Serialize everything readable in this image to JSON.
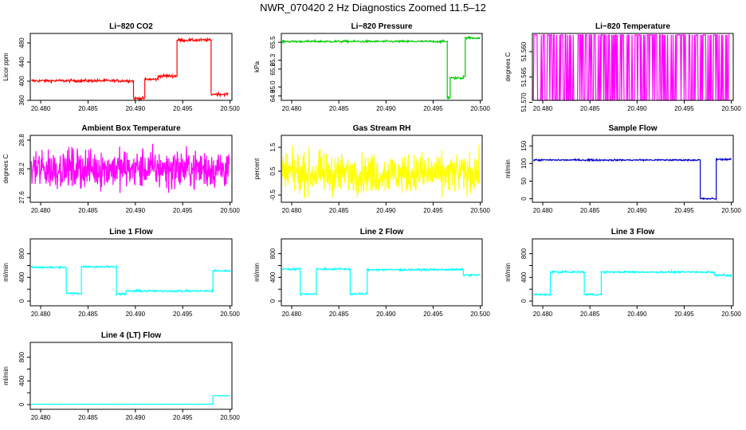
{
  "page": {
    "title": "NWR_070420  2 Hz Diagnostics Zoomed 11.5–12"
  },
  "chart_data": [
    {
      "type": "line",
      "title": "Li−820 CO2",
      "xlabel": "",
      "ylabel": "Licor ppm",
      "color": "#ff0000",
      "xlim": [
        20.4789,
        20.5002
      ],
      "ylim": [
        360,
        500
      ],
      "xticks": [
        20.48,
        20.485,
        20.49,
        20.495,
        20.5
      ],
      "xtick_labels": [
        "20.480",
        "20.485",
        "20.490",
        "20.495",
        "20.500"
      ],
      "yticks": [
        360,
        400,
        440,
        480
      ],
      "ytick_labels": [
        "360",
        "400",
        "440",
        "480"
      ],
      "noise": 1.5,
      "segments": [
        [
          20.479,
          20.4898,
          401
        ],
        [
          20.4898,
          20.491,
          364
        ],
        [
          20.491,
          20.4924,
          404
        ],
        [
          20.4924,
          20.4944,
          411
        ],
        [
          20.4944,
          20.498,
          486
        ],
        [
          20.498,
          20.4998,
          373
        ]
      ]
    },
    {
      "type": "line",
      "title": "Li−820 Pressure",
      "xlabel": "",
      "ylabel": "kPa",
      "color": "#00cc00",
      "xlim": [
        20.4789,
        20.5002
      ],
      "ylim": [
        64.85,
        65.6
      ],
      "xticks": [
        20.48,
        20.485,
        20.49,
        20.495,
        20.5
      ],
      "xtick_labels": [
        "20.480",
        "20.485",
        "20.490",
        "20.495",
        "20.500"
      ],
      "yticks": [
        64.9,
        65.0,
        65.2,
        65.3,
        65.5
      ],
      "ytick_labels": [
        "64.9",
        "65.0",
        "65.2",
        "65.3",
        "65.5"
      ],
      "noise": 0.006,
      "segments": [
        [
          20.479,
          20.4965,
          65.51
        ],
        [
          20.4965,
          20.4968,
          64.88
        ],
        [
          20.4968,
          20.4982,
          65.1
        ],
        [
          20.4982,
          20.4984,
          65.12
        ],
        [
          20.4984,
          20.5,
          65.55
        ]
      ]
    },
    {
      "type": "line",
      "title": "Li−820 Temperature",
      "xlabel": "",
      "ylabel": "degrees C",
      "color": "#ff00ff",
      "xlim": [
        20.4789,
        20.5002
      ],
      "ylim": [
        51.5696,
        51.5564
      ],
      "xticks": [
        20.48,
        20.485,
        20.49,
        20.495,
        20.5
      ],
      "xtick_labels": [
        "20.480",
        "20.485",
        "20.490",
        "20.495",
        "20.500"
      ],
      "yticks": [
        51.57,
        51.565,
        51.56
      ],
      "ytick_labels": [
        "51.570",
        "51.565",
        "51.560"
      ],
      "quantized_levels": [
        51.5696,
        51.5567
      ]
    },
    {
      "type": "line",
      "title": "Ambient Box Temperature",
      "xlabel": "",
      "ylabel": "degrees C",
      "color": "#ff00ff",
      "xlim": [
        20.4789,
        20.5002
      ],
      "ylim": [
        27.5,
        28.9
      ],
      "xticks": [
        20.48,
        20.485,
        20.49,
        20.495,
        20.5
      ],
      "xtick_labels": [
        "20.480",
        "20.485",
        "20.490",
        "20.495",
        "20.500"
      ],
      "yticks": [
        27.6,
        28.2,
        28.8
      ],
      "ytick_labels": [
        "27.6",
        "28.2",
        "28.8"
      ],
      "noise_band": [
        27.6,
        28.8
      ],
      "center": 28.2
    },
    {
      "type": "line",
      "title": "Gas Stream RH",
      "xlabel": "",
      "ylabel": "percent",
      "color": "#ffff00",
      "xlim": [
        20.4789,
        20.5002
      ],
      "ylim": [
        -0.8,
        2.0
      ],
      "xticks": [
        20.48,
        20.485,
        20.49,
        20.495,
        20.5
      ],
      "xtick_labels": [
        "20.480",
        "20.485",
        "20.490",
        "20.495",
        "20.500"
      ],
      "yticks": [
        -0.5,
        0.5,
        1.5
      ],
      "ytick_labels": [
        "-0.5",
        "0.5",
        "1.5"
      ],
      "noise_band": [
        -0.6,
        1.8
      ],
      "center": 0.4
    },
    {
      "type": "line",
      "title": "Sample Flow",
      "xlabel": "",
      "ylabel": "ml/min",
      "color": "#0000cc",
      "xlim": [
        20.4789,
        20.5002
      ],
      "ylim": [
        -10,
        180
      ],
      "xticks": [
        20.48,
        20.485,
        20.49,
        20.495,
        20.5
      ],
      "xtick_labels": [
        "20.480",
        "20.485",
        "20.490",
        "20.495",
        "20.500"
      ],
      "yticks": [
        0,
        50,
        100,
        150
      ],
      "ytick_labels": [
        "0",
        "50",
        "100",
        "150"
      ],
      "noise": 1.2,
      "segments": [
        [
          20.479,
          20.4967,
          110
        ],
        [
          20.4967,
          20.4984,
          0
        ],
        [
          20.4984,
          20.5,
          112
        ]
      ]
    },
    {
      "type": "line",
      "title": "Line 1 Flow",
      "xlabel": "",
      "ylabel": "ml/min",
      "color": "#00ffff",
      "xlim": [
        20.4789,
        20.5002
      ],
      "ylim": [
        -80,
        1050
      ],
      "xticks": [
        20.48,
        20.485,
        20.49,
        20.495,
        20.5
      ],
      "xtick_labels": [
        "20.480",
        "20.485",
        "20.490",
        "20.495",
        "20.500"
      ],
      "yticks": [
        0,
        200,
        400,
        600,
        800
      ],
      "ytick_labels": [
        "0",
        "",
        "400",
        "",
        "800"
      ],
      "noise": 8,
      "segments": [
        [
          20.479,
          20.4827,
          570
        ],
        [
          20.4827,
          20.4843,
          130
        ],
        [
          20.4843,
          20.488,
          580
        ],
        [
          20.488,
          20.489,
          120
        ],
        [
          20.489,
          20.4982,
          170
        ],
        [
          20.4982,
          20.5,
          510
        ]
      ]
    },
    {
      "type": "line",
      "title": "Line 2 Flow",
      "xlabel": "",
      "ylabel": "ml/min",
      "color": "#00ffff",
      "xlim": [
        20.4789,
        20.5002
      ],
      "ylim": [
        -80,
        1050
      ],
      "xticks": [
        20.48,
        20.485,
        20.49,
        20.495,
        20.5
      ],
      "xtick_labels": [
        "20.480",
        "20.485",
        "20.490",
        "20.495",
        "20.500"
      ],
      "yticks": [
        0,
        200,
        400,
        600,
        800
      ],
      "ytick_labels": [
        "0",
        "",
        "400",
        "",
        "800"
      ],
      "noise": 8,
      "segments": [
        [
          20.479,
          20.4809,
          540
        ],
        [
          20.4809,
          20.4826,
          120
        ],
        [
          20.4826,
          20.4862,
          540
        ],
        [
          20.4862,
          20.488,
          120
        ],
        [
          20.488,
          20.4982,
          530
        ],
        [
          20.4982,
          20.5,
          440
        ]
      ]
    },
    {
      "type": "line",
      "title": "Line 3 Flow",
      "xlabel": "",
      "ylabel": "ml/min",
      "color": "#00ffff",
      "xlim": [
        20.4789,
        20.5002
      ],
      "ylim": [
        -80,
        1050
      ],
      "xticks": [
        20.48,
        20.485,
        20.49,
        20.495,
        20.5
      ],
      "xtick_labels": [
        "20.480",
        "20.485",
        "20.490",
        "20.495",
        "20.500"
      ],
      "yticks": [
        0,
        200,
        400,
        600,
        800
      ],
      "ytick_labels": [
        "0",
        "",
        "400",
        "",
        "800"
      ],
      "noise": 8,
      "segments": [
        [
          20.479,
          20.4808,
          110
        ],
        [
          20.4808,
          20.4844,
          490
        ],
        [
          20.4844,
          20.4862,
          110
        ],
        [
          20.4862,
          20.4982,
          490
        ],
        [
          20.4982,
          20.5,
          440
        ]
      ]
    },
    {
      "type": "line",
      "title": "Line 4 (LT) Flow",
      "xlabel": "",
      "ylabel": "ml/min",
      "color": "#00ffff",
      "xlim": [
        20.4789,
        20.5002
      ],
      "ylim": [
        -80,
        1050
      ],
      "xticks": [
        20.48,
        20.485,
        20.49,
        20.495,
        20.5
      ],
      "xtick_labels": [
        "20.480",
        "20.485",
        "20.490",
        "20.495",
        "20.500"
      ],
      "yticks": [
        0,
        200,
        400,
        600,
        800
      ],
      "ytick_labels": [
        "0",
        "",
        "400",
        "",
        "800"
      ],
      "noise": 2,
      "segments": [
        [
          20.479,
          20.4982,
          5
        ],
        [
          20.4982,
          20.5,
          150
        ]
      ]
    }
  ]
}
